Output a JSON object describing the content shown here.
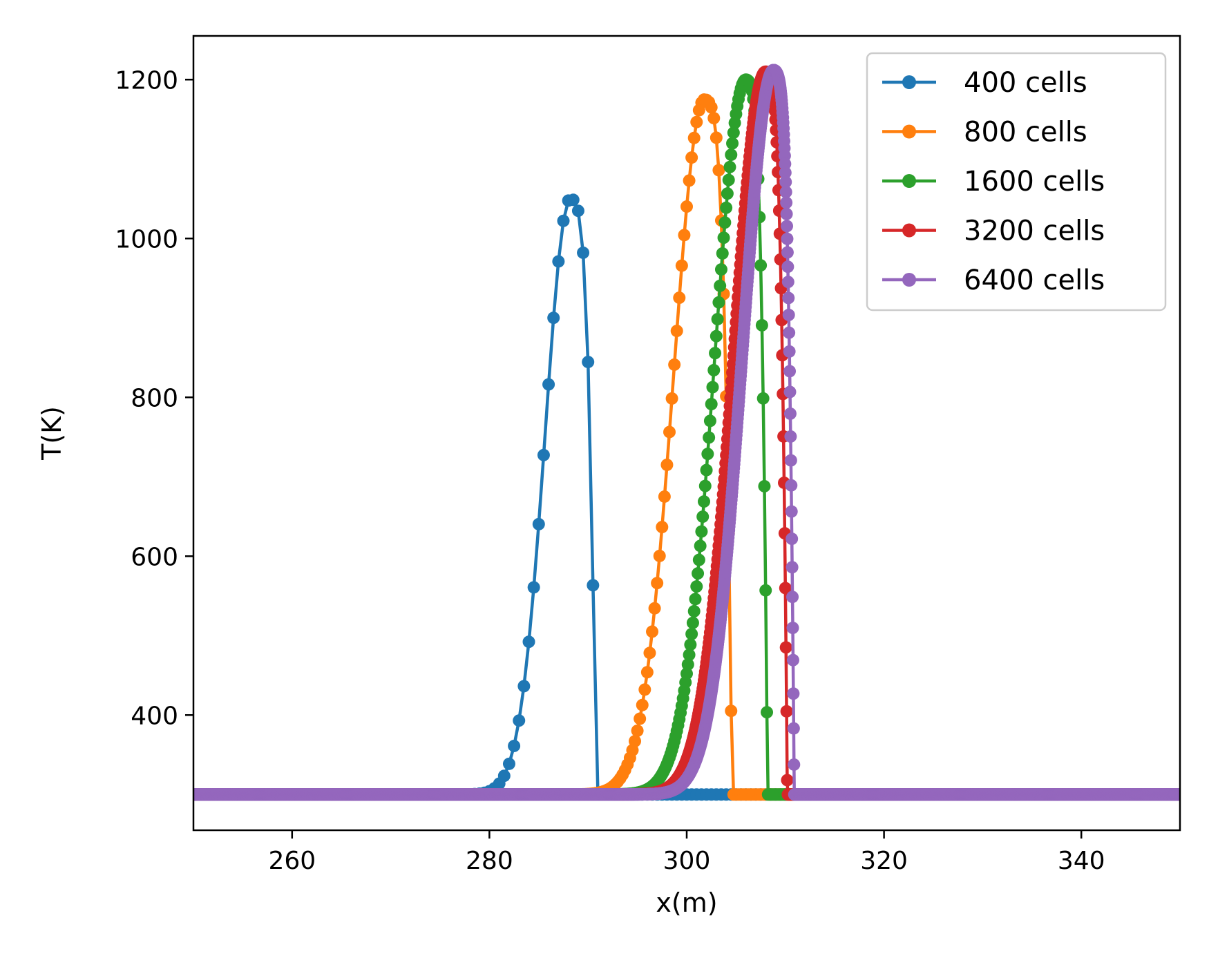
{
  "chart_data": {
    "type": "line",
    "title": "",
    "xlabel": "x(m)",
    "ylabel": "T(K)",
    "xlim": [
      250,
      350
    ],
    "ylim": [
      255,
      1255
    ],
    "grid": false,
    "legend_position": "top-right",
    "xticks": [
      260,
      280,
      300,
      320,
      340
    ],
    "yticks": [
      400,
      600,
      800,
      1000,
      1200
    ],
    "series": [
      {
        "name": "400 cells",
        "color": "#1f77b4",
        "cells": 400,
        "profile": {
          "base": 300,
          "peak": 1050,
          "center": 288.2,
          "rise": 3.6,
          "edge": 290.8,
          "fall": 0.5
        }
      },
      {
        "name": "800 cells",
        "color": "#ff7f0e",
        "cells": 800,
        "profile": {
          "base": 300,
          "peak": 1175,
          "center": 301.8,
          "rise": 4.4,
          "edge": 304.6,
          "fall": 0.4
        }
      },
      {
        "name": "1600 cells",
        "color": "#2ca02c",
        "cells": 1600,
        "profile": {
          "base": 300,
          "peak": 1200,
          "center": 306.0,
          "rise": 4.5,
          "edge": 308.2,
          "fall": 0.35
        }
      },
      {
        "name": "3200 cells",
        "color": "#d62728",
        "cells": 3200,
        "profile": {
          "base": 300,
          "peak": 1210,
          "center": 308.0,
          "rise": 4.6,
          "edge": 310.2,
          "fall": 0.3
        }
      },
      {
        "name": "6400 cells",
        "color": "#9467bd",
        "cells": 6400,
        "profile": {
          "base": 300,
          "peak": 1212,
          "center": 308.8,
          "rise": 4.5,
          "edge": 310.9,
          "fall": 0.25
        }
      }
    ]
  }
}
